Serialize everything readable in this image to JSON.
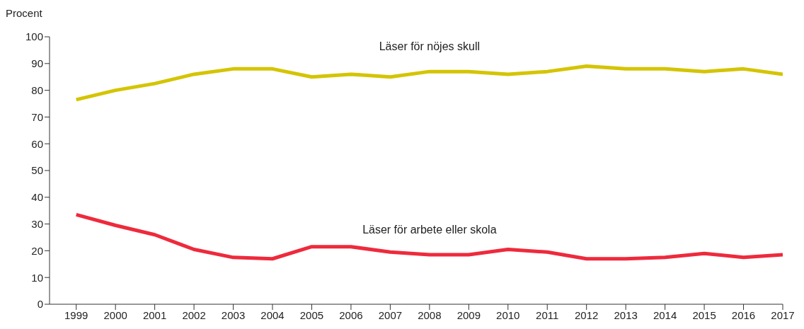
{
  "chart_data": {
    "type": "line",
    "ylabel": "Procent",
    "categories": [
      "1999",
      "2000",
      "2001",
      "2002",
      "2003",
      "2004",
      "2005",
      "2006",
      "2007",
      "2008",
      "2009",
      "2010",
      "2011",
      "2012",
      "2013",
      "2014",
      "2015",
      "2016",
      "2017"
    ],
    "series": [
      {
        "name": "Läser för nöjes skull",
        "color": "#d4c400",
        "values": [
          76.5,
          80,
          82.5,
          86,
          88,
          88,
          85,
          86,
          85,
          87,
          87,
          86,
          87,
          89,
          88,
          88,
          87,
          88,
          86
        ]
      },
      {
        "name": "Läser för arbete eller skola",
        "color": "#ee2a3c",
        "values": [
          33.5,
          29.5,
          26,
          20.5,
          17.5,
          17,
          21.5,
          21.5,
          19.5,
          18.5,
          18.5,
          20.5,
          19.5,
          17,
          17,
          17.5,
          19,
          17.5,
          18.5
        ]
      }
    ],
    "ylim": [
      0,
      100
    ],
    "yticks": [
      0,
      10,
      20,
      30,
      40,
      50,
      60,
      70,
      80,
      90,
      100
    ],
    "grid": false,
    "legend": false,
    "marker": "none",
    "line_style": "solid"
  }
}
